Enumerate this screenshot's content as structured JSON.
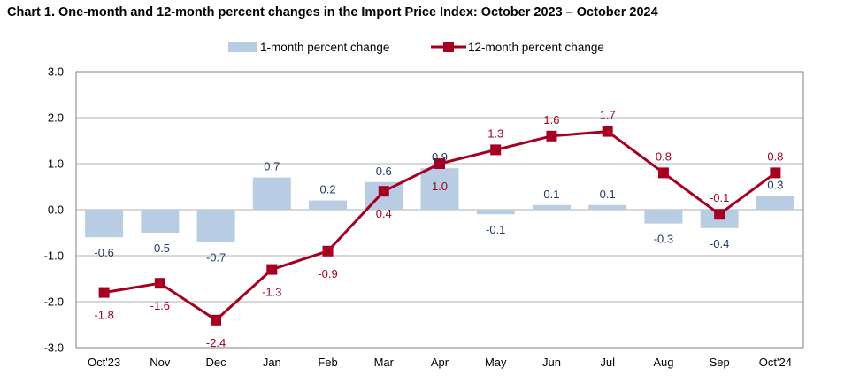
{
  "chart_data": {
    "type": "bar+line",
    "title": "Chart 1. One-month and 12-month percent changes in the Import Price Index: October 2023 – October 2024",
    "categories": [
      "Oct'23",
      "Nov",
      "Dec",
      "Jan",
      "Feb",
      "Mar",
      "Apr",
      "May",
      "Jun",
      "Jul",
      "Aug",
      "Sep",
      "Oct'24"
    ],
    "series": [
      {
        "name": "1-month percent change",
        "type": "bar",
        "color": "#b8cce4",
        "values": [
          -0.6,
          -0.5,
          -0.7,
          0.7,
          0.2,
          0.6,
          0.9,
          -0.1,
          0.1,
          0.1,
          -0.3,
          -0.4,
          0.3
        ],
        "label_color": "#1f3864"
      },
      {
        "name": "12-month percent change",
        "type": "line",
        "color": "#a50021",
        "values": [
          -1.8,
          -1.6,
          -2.4,
          -1.3,
          -0.9,
          0.4,
          1.0,
          1.3,
          1.6,
          1.7,
          0.8,
          -0.1,
          0.8
        ],
        "label_color": "#a50021"
      }
    ],
    "ylim": [
      -3.0,
      3.0
    ],
    "yticks": [
      "3.0",
      "2.0",
      "1.0",
      "0.0",
      "-1.0",
      "-2.0",
      "-3.0"
    ],
    "xlabel": "",
    "ylabel": "",
    "grid": true,
    "legend_position": "top-center"
  }
}
